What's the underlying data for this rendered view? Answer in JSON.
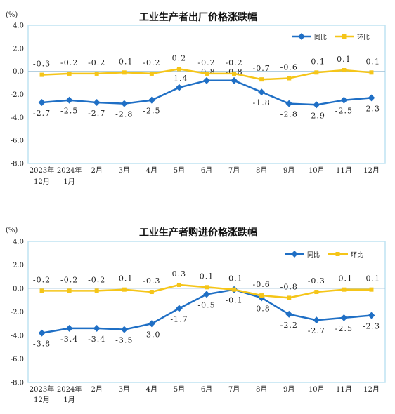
{
  "colors": {
    "yoy": "#1f6fc5",
    "mom": "#f5c518",
    "plot_bg": "#ffffff",
    "border": "#bfe3f2"
  },
  "chart_data": [
    {
      "type": "line",
      "title": "工业生产者出厂价格涨跌幅",
      "unit": "(%)",
      "ylim": [
        -8.0,
        4.0
      ],
      "yticks": [
        "4.0",
        "2.0",
        "0.0",
        "-2.0",
        "-4.0",
        "-6.0",
        "-8.0"
      ],
      "categories": [
        [
          "2023年",
          "12月"
        ],
        [
          "2024年",
          "1月"
        ],
        [
          "2月"
        ],
        [
          "3月"
        ],
        [
          "4月"
        ],
        [
          "5月"
        ],
        [
          "6月"
        ],
        [
          "7月"
        ],
        [
          "8月"
        ],
        [
          "9月"
        ],
        [
          "10月"
        ],
        [
          "11月"
        ],
        [
          "12月"
        ]
      ],
      "legend_position": "top-right",
      "grid": false,
      "series": [
        {
          "name": "同比",
          "color": "#1f6fc5",
          "values": [
            -2.7,
            -2.5,
            -2.7,
            -2.8,
            -2.5,
            -1.4,
            -0.8,
            -0.8,
            -1.8,
            -2.8,
            -2.9,
            -2.5,
            -2.3
          ],
          "labels": [
            "-2.7",
            "-2.5",
            "-2.7",
            "-2.8",
            "-2.5",
            "-1.4",
            "-0.8",
            "-0.8",
            "-1.8",
            "-2.8",
            "-2.9",
            "-2.5",
            "-2.3"
          ]
        },
        {
          "name": "环比",
          "color": "#f5c518",
          "values": [
            -0.3,
            -0.2,
            -0.2,
            -0.1,
            -0.2,
            0.2,
            -0.2,
            -0.2,
            -0.7,
            -0.6,
            -0.1,
            0.1,
            -0.1
          ],
          "labels": [
            "-0.3",
            "-0.2",
            "-0.2",
            "-0.1",
            "-0.2",
            "0.2",
            "-0.2",
            "-0.2",
            "-0.7",
            "-0.6",
            "-0.1",
            "0.1",
            "-0.1"
          ]
        }
      ]
    },
    {
      "type": "line",
      "title": "工业生产者购进价格涨跌幅",
      "unit": "(%)",
      "ylim": [
        -8.0,
        4.0
      ],
      "yticks": [
        "4.0",
        "2.0",
        "0.0",
        "-2.0",
        "-4.0",
        "-6.0",
        "-8.0"
      ],
      "categories": [
        [
          "2023年",
          "12月"
        ],
        [
          "2024年",
          "1月"
        ],
        [
          "2月"
        ],
        [
          "3月"
        ],
        [
          "4月"
        ],
        [
          "5月"
        ],
        [
          "6月"
        ],
        [
          "7月"
        ],
        [
          "8月"
        ],
        [
          "9月"
        ],
        [
          "10月"
        ],
        [
          "11月"
        ],
        [
          "12月"
        ]
      ],
      "legend_position": "top-right",
      "grid": false,
      "series": [
        {
          "name": "同比",
          "color": "#1f6fc5",
          "values": [
            -3.8,
            -3.4,
            -3.4,
            -3.5,
            -3.0,
            -1.7,
            -0.5,
            -0.1,
            -0.8,
            -2.2,
            -2.7,
            -2.5,
            -2.3
          ],
          "labels": [
            "-3.8",
            "-3.4",
            "-3.4",
            "-3.5",
            "-3.0",
            "-1.7",
            "-0.5",
            "-0.1",
            "-0.8",
            "-2.2",
            "-2.7",
            "-2.5",
            "-2.3"
          ]
        },
        {
          "name": "环比",
          "color": "#f5c518",
          "values": [
            -0.2,
            -0.2,
            -0.2,
            -0.1,
            -0.3,
            0.3,
            0.1,
            -0.1,
            -0.6,
            -0.8,
            -0.3,
            -0.1,
            -0.1
          ],
          "labels": [
            "-0.2",
            "-0.2",
            "-0.2",
            "-0.1",
            "-0.3",
            "0.3",
            "0.1",
            "-0.1",
            "-0.6",
            "-0.8",
            "-0.3",
            "-0.1",
            "-0.1"
          ]
        }
      ]
    }
  ]
}
